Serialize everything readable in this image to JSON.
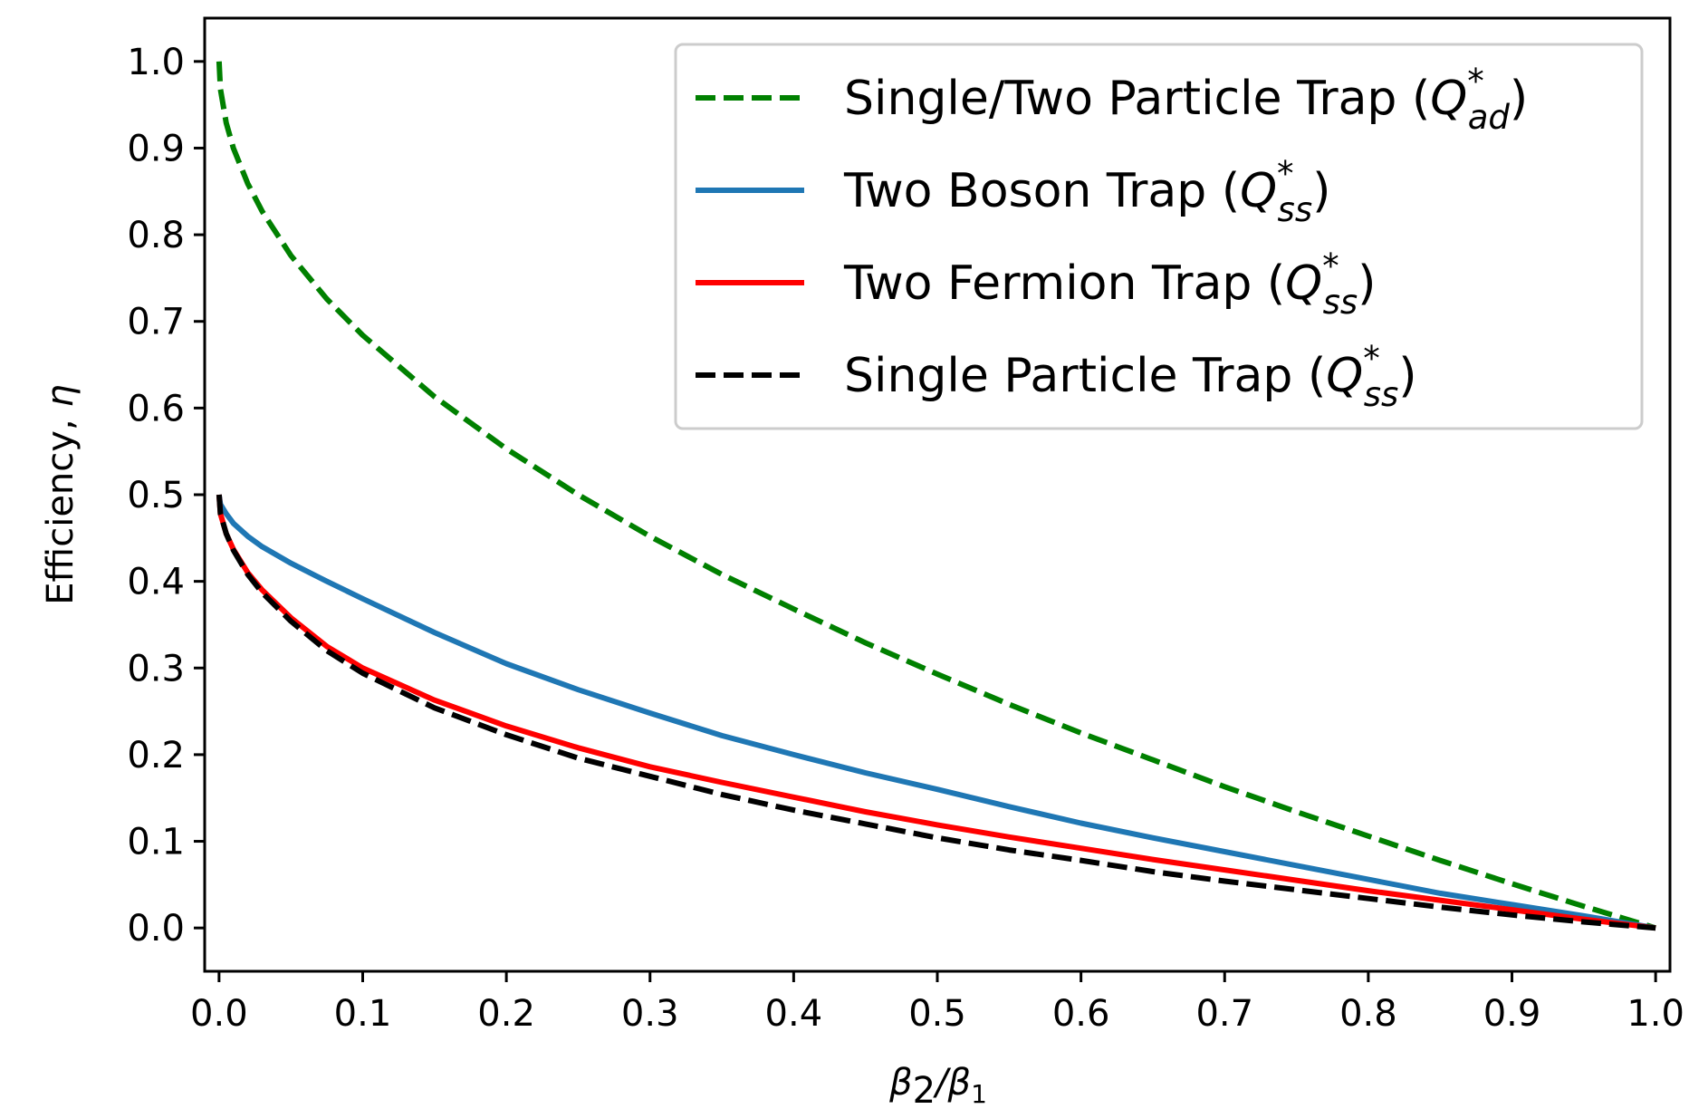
{
  "chart_data": {
    "type": "line",
    "title": "",
    "xlabel": {
      "main": "β",
      "sub1": "2",
      "slash": "/β",
      "sub2": "1"
    },
    "ylabel": {
      "prefix": "Efficiency, ",
      "symbol": "η"
    },
    "xlim": [
      -0.01,
      1.01
    ],
    "ylim": [
      -0.05,
      1.05
    ],
    "xticks": [
      "0.0",
      "0.1",
      "0.2",
      "0.3",
      "0.4",
      "0.5",
      "0.6",
      "0.7",
      "0.8",
      "0.9",
      "1.0"
    ],
    "yticks": [
      "0.0",
      "0.1",
      "0.2",
      "0.3",
      "0.4",
      "0.5",
      "0.6",
      "0.7",
      "0.8",
      "0.9",
      "1.0"
    ],
    "grid": false,
    "legend_position": "top-right",
    "x": [
      0.0,
      0.001,
      0.005,
      0.01,
      0.02,
      0.03,
      0.05,
      0.075,
      0.1,
      0.15,
      0.2,
      0.25,
      0.3,
      0.35,
      0.4,
      0.45,
      0.5,
      0.55,
      0.6,
      0.65,
      0.7,
      0.75,
      0.8,
      0.85,
      0.9,
      0.95,
      1.0
    ],
    "series": [
      {
        "name": "Single/Two Particle Trap",
        "legend_math": {
          "base": "Q",
          "sup": "*",
          "sub": "ad"
        },
        "color": "#008000",
        "dash": true,
        "values": [
          1.0,
          0.968,
          0.929,
          0.9,
          0.859,
          0.827,
          0.776,
          0.726,
          0.684,
          0.613,
          0.553,
          0.5,
          0.452,
          0.408,
          0.368,
          0.329,
          0.293,
          0.258,
          0.225,
          0.194,
          0.163,
          0.134,
          0.106,
          0.078,
          0.051,
          0.025,
          0.0
        ]
      },
      {
        "name": "Two Boson Trap",
        "legend_math": {
          "base": "Q",
          "sup": "*",
          "sub": "ss"
        },
        "color": "#1f77b4",
        "dash": false,
        "values": [
          0.5,
          0.489,
          0.478,
          0.467,
          0.452,
          0.44,
          0.421,
          0.4,
          0.38,
          0.341,
          0.305,
          0.275,
          0.248,
          0.222,
          0.2,
          0.179,
          0.16,
          0.14,
          0.121,
          0.104,
          0.088,
          0.072,
          0.056,
          0.04,
          0.027,
          0.014,
          0.0
        ]
      },
      {
        "name": "Two Fermion Trap",
        "legend_math": {
          "base": "Q",
          "sup": "*",
          "sub": "ss"
        },
        "color": "#ff0000",
        "dash": false,
        "values": [
          0.5,
          0.478,
          0.455,
          0.437,
          0.41,
          0.39,
          0.358,
          0.325,
          0.3,
          0.263,
          0.233,
          0.208,
          0.186,
          0.168,
          0.151,
          0.134,
          0.119,
          0.105,
          0.092,
          0.079,
          0.067,
          0.055,
          0.043,
          0.032,
          0.021,
          0.01,
          0.0
        ]
      },
      {
        "name": "Single Particle Trap",
        "legend_math": {
          "base": "Q",
          "sup": "*",
          "sub": "ss"
        },
        "color": "#000000",
        "dash": true,
        "values": [
          0.5,
          0.478,
          0.455,
          0.436,
          0.408,
          0.387,
          0.354,
          0.32,
          0.294,
          0.254,
          0.223,
          0.196,
          0.175,
          0.154,
          0.136,
          0.12,
          0.104,
          0.09,
          0.078,
          0.065,
          0.054,
          0.044,
          0.034,
          0.024,
          0.015,
          0.007,
          0.0
        ]
      }
    ]
  }
}
